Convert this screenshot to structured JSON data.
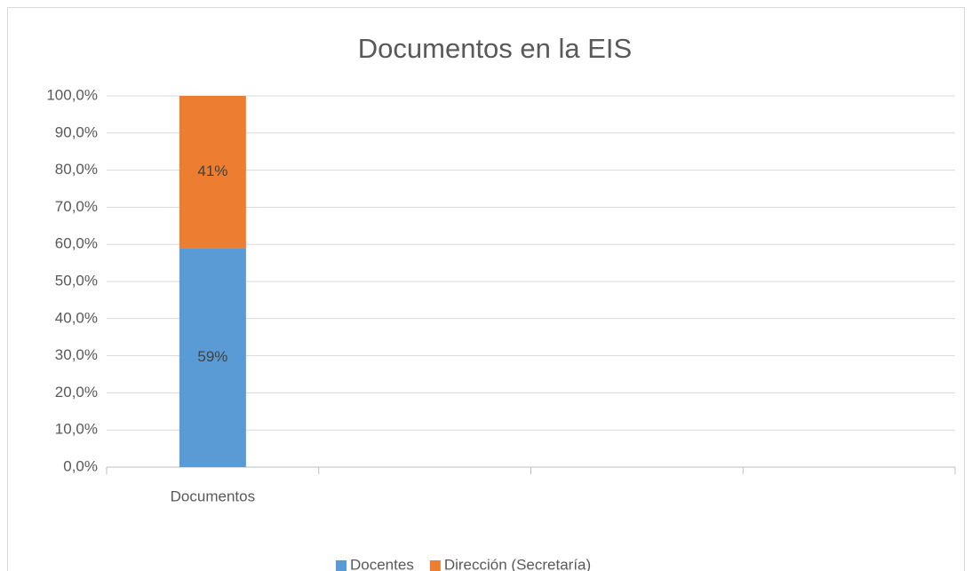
{
  "chart_data": {
    "type": "stacked_bar",
    "title": "Documentos en la EIS",
    "categories": [
      "Documentos",
      null,
      null,
      null
    ],
    "series": [
      {
        "name": "Docentes",
        "color": "#5b9bd5",
        "values": [
          59,
          null,
          null,
          null
        ],
        "value_labels": [
          "59%",
          null,
          null,
          null
        ]
      },
      {
        "name": "Dirección (Secretaría)",
        "color": "#ed7d31",
        "values": [
          41,
          null,
          null,
          null
        ],
        "value_labels": [
          "41%",
          null,
          null,
          null
        ]
      }
    ],
    "ylim": [
      0,
      100
    ],
    "yticks": [
      {
        "value": 0,
        "label": "0,0%"
      },
      {
        "value": 10,
        "label": "10,0%"
      },
      {
        "value": 20,
        "label": "20,0%"
      },
      {
        "value": 30,
        "label": "30,0%"
      },
      {
        "value": 40,
        "label": "40,0%"
      },
      {
        "value": 50,
        "label": "50,0%"
      },
      {
        "value": 60,
        "label": "60,0%"
      },
      {
        "value": 70,
        "label": "70,0%"
      },
      {
        "value": 80,
        "label": "80,0%"
      },
      {
        "value": 90,
        "label": "90,0%"
      },
      {
        "value": 100,
        "label": "100,0%"
      }
    ],
    "grid": true,
    "legend": "bottom"
  }
}
